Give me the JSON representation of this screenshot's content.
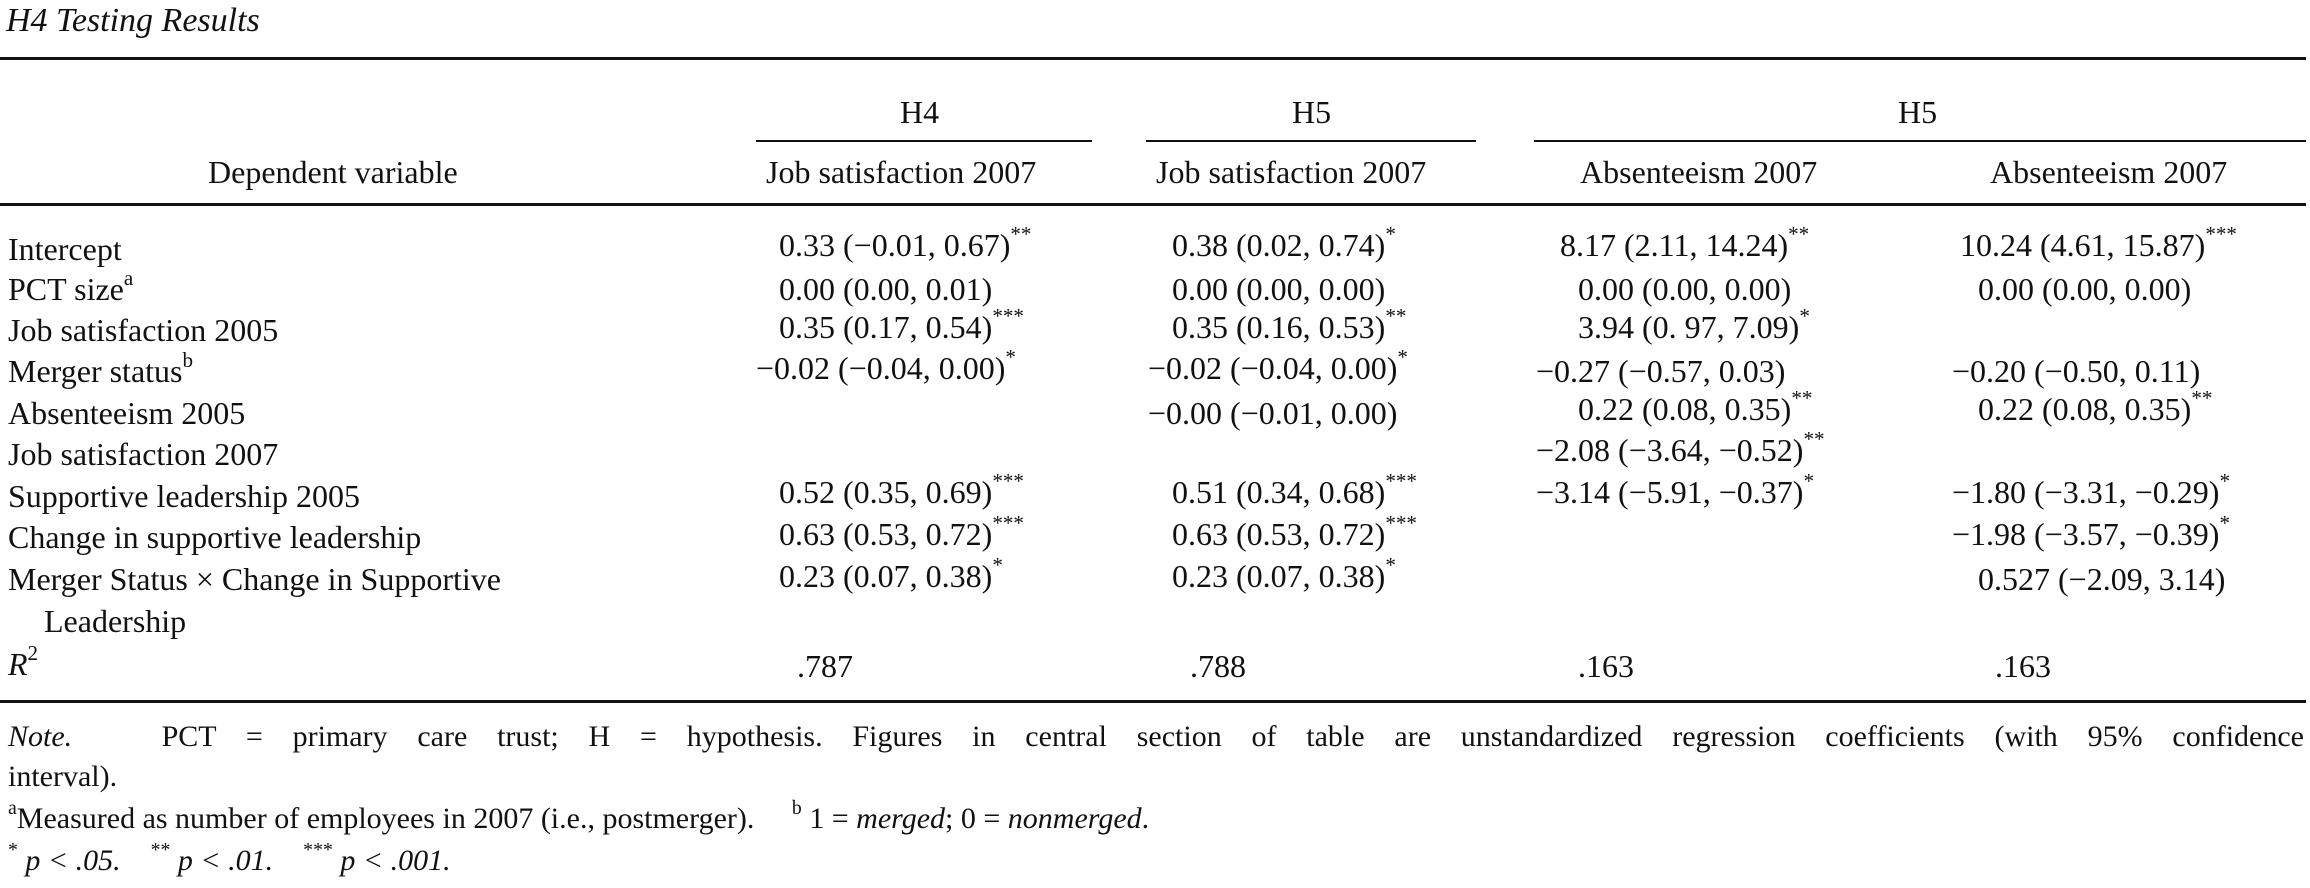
{
  "title": "H4 Testing Results",
  "header": {
    "group_h4": "H4",
    "group_h5a": "H5",
    "group_h5b": "H5",
    "dv_label": "Dependent variable",
    "col1": "Job satisfaction 2007",
    "col2": "Job satisfaction 2007",
    "col3": "Absenteeism 2007",
    "col4": "Absenteeism 2007"
  },
  "rows": [
    {
      "label": "Intercept",
      "sup": "",
      "c1": "0.33 (−0.01, 0.67)",
      "s1": "**",
      "c2": "0.38 (0.02, 0.74)",
      "s2": "*",
      "c3": "8.17 (2.11, 14.24)",
      "s3": "**",
      "c4": "10.24 (4.61, 15.87)",
      "s4": "***"
    },
    {
      "label": "PCT size",
      "sup": "a",
      "c1": "0.00 (0.00, 0.01)",
      "s1": "",
      "c2": "0.00 (0.00, 0.00)",
      "s2": "",
      "c3": "0.00 (0.00, 0.00)",
      "s3": "",
      "c4": "0.00 (0.00, 0.00)",
      "s4": ""
    },
    {
      "label": "Job satisfaction 2005",
      "sup": "",
      "c1": "0.35 (0.17, 0.54)",
      "s1": "***",
      "c2": "0.35 (0.16, 0.53)",
      "s2": "**",
      "c3": "3.94 (0. 97, 7.09)",
      "s3": "*",
      "c4": "",
      "s4": ""
    },
    {
      "label": "Merger status",
      "sup": "b",
      "c1": "−0.02 (−0.04, 0.00)",
      "s1": "*",
      "c2": "−0.02 (−0.04, 0.00)",
      "s2": "*",
      "c3": "−0.27 (−0.57, 0.03)",
      "s3": "",
      "c4": "−0.20 (−0.50, 0.11)",
      "s4": ""
    },
    {
      "label": "Absenteeism 2005",
      "sup": "",
      "c1": "",
      "s1": "",
      "c2": "−0.00 (−0.01, 0.00)",
      "s2": "",
      "c3": "0.22 (0.08, 0.35)",
      "s3": "**",
      "c4": "0.22 (0.08, 0.35)",
      "s4": "**"
    },
    {
      "label": "Job satisfaction 2007",
      "sup": "",
      "c1": "",
      "s1": "",
      "c2": "",
      "s2": "",
      "c3": "−2.08 (−3.64, −0.52)",
      "s3": "**",
      "c4": "",
      "s4": ""
    },
    {
      "label": "Supportive leadership 2005",
      "sup": "",
      "c1": "0.52 (0.35, 0.69)",
      "s1": "***",
      "c2": "0.51 (0.34, 0.68)",
      "s2": "***",
      "c3": "−3.14 (−5.91, −0.37)",
      "s3": "*",
      "c4": "−1.80 (−3.31, −0.29)",
      "s4": "*"
    },
    {
      "label": "Change in supportive leadership",
      "sup": "",
      "c1": "0.63 (0.53, 0.72)",
      "s1": "***",
      "c2": "0.63 (0.53, 0.72)",
      "s2": "***",
      "c3": "",
      "s3": "",
      "c4": "−1.98 (−3.57, −0.39)",
      "s4": "*"
    },
    {
      "label": "Merger Status × Change in Supportive",
      "sup": "",
      "c1": "0.23 (0.07, 0.38)",
      "s1": "*",
      "c2": "0.23 (0.07, 0.38)",
      "s2": "*",
      "c3": "",
      "s3": "",
      "c4": "0.527 (−2.09, 3.14)",
      "s4": ""
    }
  ],
  "row_continuation": "Leadership",
  "r2": {
    "label": "R",
    "sup": "2",
    "c1": ".787",
    "c2": ".788",
    "c3": ".163",
    "c4": ".163"
  },
  "notes": {
    "note_label": "Note.",
    "note_line1": "PCT = primary care trust; H = hypothesis. Figures in central section of table are unstandardized regression coefficients (with 95% confidence",
    "note_line2": "interval).",
    "fn_a_mark": "a",
    "fn_a_text": "Measured as number of employees in 2007 (i.e., postmerger).",
    "fn_b_mark": "b",
    "fn_b_pre": "1 = ",
    "fn_b_merged": "merged",
    "fn_b_mid": "; 0 = ",
    "fn_b_nonmerged": "nonmerged",
    "fn_b_end": ".",
    "sig1_star": "*",
    "sig1_text": "p < .05.",
    "sig2_star": "**",
    "sig2_text": "p < .01.",
    "sig3_star": "***",
    "sig3_text": "p < .001."
  }
}
